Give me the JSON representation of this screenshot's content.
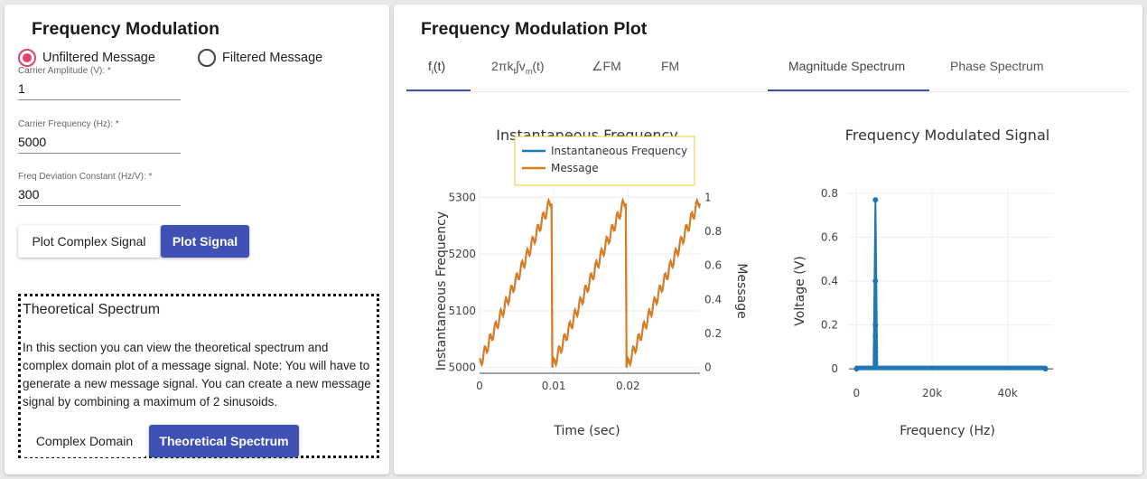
{
  "left": {
    "title": "Frequency Modulation",
    "radio": [
      {
        "label": "Unfiltered Message",
        "checked": true
      },
      {
        "label": "Filtered Message",
        "checked": false
      }
    ],
    "fields": [
      {
        "label": "Carrier Amplitude (V): *",
        "value": "1"
      },
      {
        "label": "Carrier Frequency (Hz): *",
        "value": "5000"
      },
      {
        "label": "Freq Deviation Constant (Hz/V): *",
        "value": "300"
      }
    ],
    "buttons": {
      "plot_complex": "Plot Complex Signal",
      "plot_signal": "Plot Signal"
    },
    "theory": {
      "title": "Theoretical Spectrum",
      "text": "In this section you can view the theoretical spectrum and complex domain plot of a message signal. Note: You will have to generate a new message signal. You can create a new message signal by combining a maximum of 2 sinusoids.",
      "complex_domain": "Complex Domain",
      "theoretical_spectrum": "Theoretical Spectrum"
    }
  },
  "right": {
    "title": "Frequency Modulation Plot",
    "tabs_left": [
      {
        "label": "f",
        "sub": "i",
        "suffix": "(t)",
        "active": true
      },
      {
        "label": "2πk",
        "sub": "f",
        "mid": "∫v",
        "sub2": "m",
        "suffix": "(t)",
        "active": false
      },
      {
        "label": "∠FM",
        "active": false
      },
      {
        "label": "FM",
        "active": false
      }
    ],
    "tabs_right": [
      {
        "label": "Magnitude Spectrum",
        "active": true
      },
      {
        "label": "Phase Spectrum",
        "active": false
      }
    ]
  },
  "colors": {
    "accent": "#3f51b5",
    "radio": "#e0446a",
    "series_blue": "#1f77b4",
    "series_orange": "#e07b1a"
  },
  "chart_data": [
    {
      "type": "line",
      "title": "Instantaneous Frequency",
      "xlabel": "Time (sec)",
      "ylabel": "Instantaneous Frequency",
      "y2label": "Message",
      "xlim": [
        0,
        0.0297
      ],
      "ylim": [
        4990,
        5315
      ],
      "y2lim": [
        -0.0333,
        1.05
      ],
      "xticks": [
        "0",
        "0.01",
        "0.02"
      ],
      "yticks": [
        "5000",
        "5100",
        "5200",
        "5300"
      ],
      "y2ticks": [
        "0",
        "0.2",
        "0.4",
        "0.6",
        "0.8",
        "1"
      ],
      "legend": [
        "Instantaneous Frequency",
        "Message"
      ],
      "legend_position": "top",
      "sawtooth": {
        "period": 0.01,
        "freq_min": 5000,
        "freq_max": 5300,
        "message_min": 0,
        "message_max": 1
      }
    },
    {
      "type": "line",
      "title": "Frequency Modulated Signal",
      "xlabel": "Frequency (Hz)",
      "ylabel": "Voltage (V)",
      "xlim": [
        -2000,
        52000
      ],
      "ylim": [
        -0.02,
        0.82
      ],
      "xticks": [
        "0",
        "20k",
        "40k"
      ],
      "yticks": [
        "0",
        "0.2",
        "0.4",
        "0.6",
        "0.8"
      ],
      "peak": {
        "x": 5000,
        "y": 0.77
      },
      "secondary": [
        0.4,
        0.2,
        0.15,
        0.1,
        0.08,
        0.05,
        0.03
      ],
      "x_end": 50000
    }
  ]
}
